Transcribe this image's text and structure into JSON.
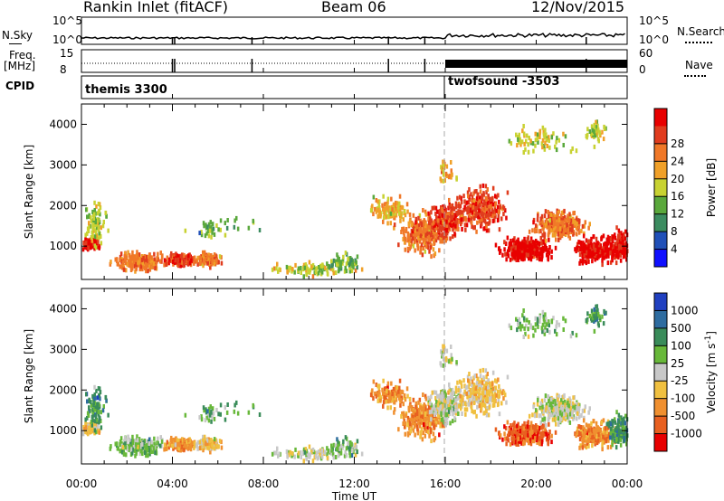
{
  "header": {
    "station": "Rankin Inlet (fitACF)",
    "beam": "Beam 06",
    "date": "12/Nov/2015"
  },
  "status_panel": {
    "left_top": "N.Sky",
    "left_ticks": [
      "10^5",
      "10^0"
    ],
    "right_top": "N.Search",
    "right_ticks": [
      "10^5",
      "10^0"
    ],
    "freq_label_1": "Freq.",
    "freq_label_2": "[MHz]",
    "freq_ticks": [
      "15",
      "8"
    ],
    "nave_label": "Nave",
    "nave_ticks": [
      "60",
      "0"
    ],
    "cpid_label": "CPID",
    "cpid_1": "themis 3300",
    "cpid_2": "twofsound -3503"
  },
  "chart_data": [
    {
      "type": "heatmap",
      "title": "",
      "ylabel": "Slant Range [km]",
      "xlabel": "",
      "x_range_hours": [
        0,
        24
      ],
      "ylim": [
        180,
        4500
      ],
      "y_ticks": [
        "1000",
        "2000",
        "3000",
        "4000"
      ],
      "colorbar_label": "Power [dB]",
      "colorbar_ticks": [
        "4",
        "8",
        "12",
        "16",
        "20",
        "24",
        "28"
      ],
      "colorbar_colors": [
        "#1010ff",
        "#2050b8",
        "#3c8c60",
        "#5aa83c",
        "#c8d232",
        "#f0a028",
        "#f07828",
        "#e03c1e",
        "#e80000"
      ]
    },
    {
      "type": "heatmap",
      "title": "",
      "ylabel": "Slant Range [km]",
      "xlabel": "Time UT",
      "x_range_hours": [
        0,
        24
      ],
      "x_ticks": [
        "00:00",
        "04:00",
        "08:00",
        "12:00",
        "16:00",
        "20:00",
        "00:00"
      ],
      "ylim": [
        180,
        4500
      ],
      "y_ticks": [
        "1000",
        "2000",
        "3000",
        "4000"
      ],
      "colorbar_label": "Velocity [m s^-1]",
      "colorbar_ticks": [
        "1000",
        "500",
        "100",
        "25",
        "-25",
        "-100",
        "-500",
        "-1000"
      ],
      "colorbar_colors": [
        "#2040c0",
        "#2e6ca0",
        "#3a8c5a",
        "#68b83a",
        "#c8c8c8",
        "#f0c040",
        "#f09030",
        "#e86020",
        "#e80000"
      ]
    }
  ]
}
